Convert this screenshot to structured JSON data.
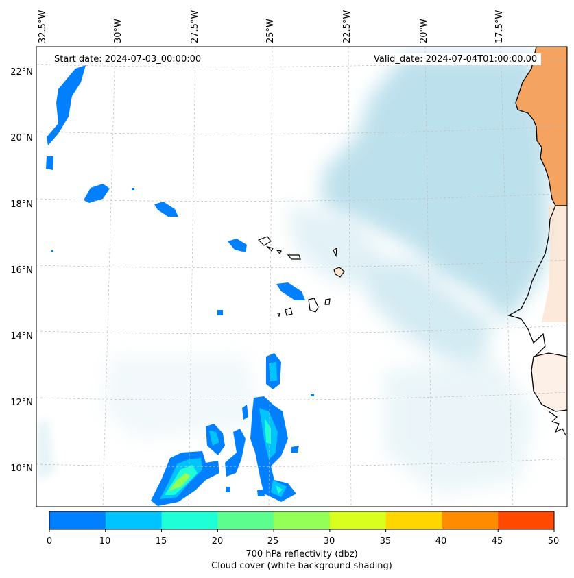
{
  "map": {
    "start_date": "Start date: 2024-07-03_00:00:00",
    "valid_date": "Valid_date: 2024-07-04T01:00:00.00",
    "lon_labels": [
      "32.5°W",
      "30°W",
      "27.5°W",
      "25°W",
      "22.5°W",
      "20°W",
      "17.5°W"
    ],
    "lat_labels": [
      "22°N",
      "20°N",
      "18°N",
      "16°N",
      "14°N",
      "12°N",
      "10°N"
    ],
    "colors": {
      "land": "#f4a460",
      "cloud": "#a9d7e6",
      "coast": "#000000",
      "grid": "#bbbbbb"
    }
  },
  "colorbar": {
    "ticks": [
      "0",
      "10",
      "15",
      "20",
      "25",
      "30",
      "35",
      "40",
      "45",
      "50"
    ],
    "colors": [
      "#0080ff",
      "#00c4ff",
      "#1effd8",
      "#5cff8e",
      "#94ff56",
      "#d8ff1e",
      "#ffd600",
      "#ff8c00",
      "#ff4800"
    ],
    "label_line1": "700 hPa reflectivity (dbz)",
    "label_line2": "Cloud cover (white background shading)"
  }
}
